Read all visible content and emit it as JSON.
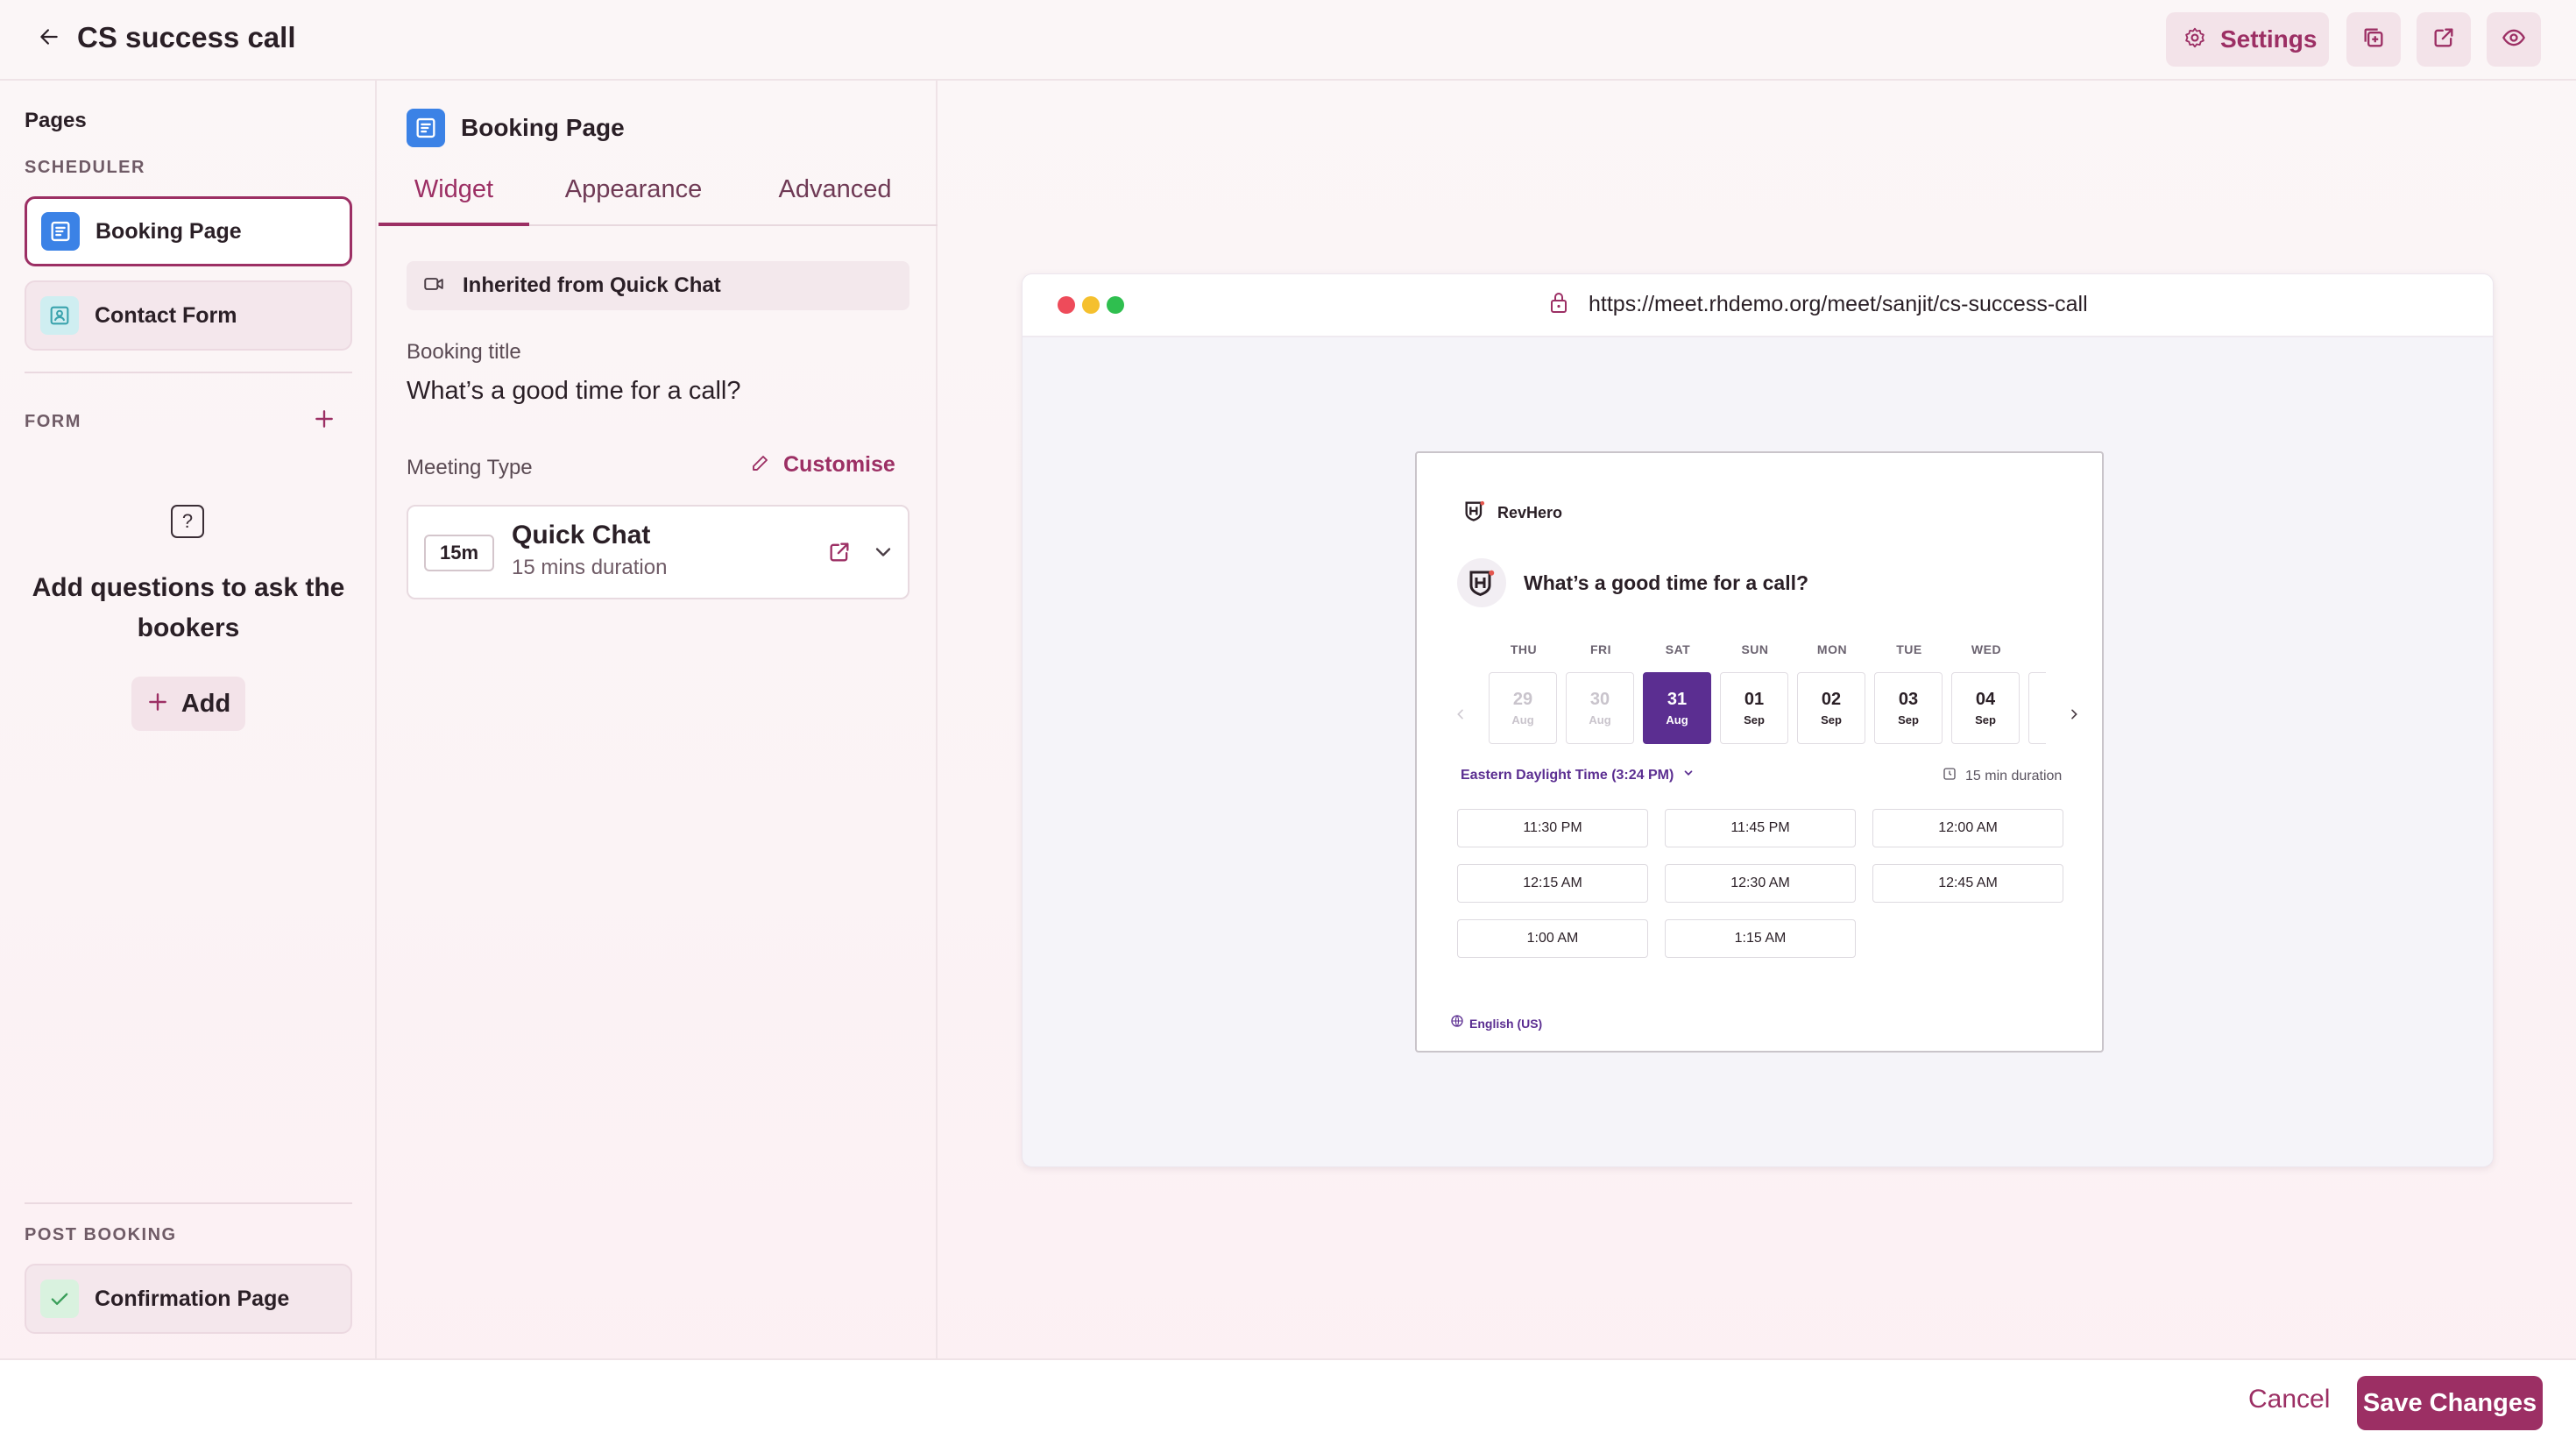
{
  "header": {
    "title": "CS success call",
    "settings_label": "Settings"
  },
  "sidebar": {
    "heading": "Pages",
    "scheduler_label": "SCHEDULER",
    "scheduler_items": [
      {
        "label": "Booking Page",
        "icon": "booking-page-icon"
      },
      {
        "label": "Contact Form",
        "icon": "contact-form-icon"
      }
    ],
    "form_label": "FORM",
    "empty_message": "Add questions to ask the bookers",
    "add_label": "Add",
    "post_booking_label": "POST BOOKING",
    "post_booking_items": [
      {
        "label": "Confirmation Page",
        "icon": "check-icon"
      }
    ]
  },
  "panel": {
    "title": "Booking Page",
    "tabs": [
      {
        "label": "Widget",
        "active": true
      },
      {
        "label": "Appearance",
        "active": false
      },
      {
        "label": "Advanced",
        "active": false
      }
    ],
    "inherited_label": "Inherited from Quick Chat",
    "booking_title_label": "Booking title",
    "booking_title_value": "What’s a good time for a call?",
    "meeting_type_label": "Meeting Type",
    "customise_label": "Customise",
    "meeting": {
      "badge": "15m",
      "name": "Quick Chat",
      "duration": "15 mins duration"
    }
  },
  "preview": {
    "url": "https://meet.rhdemo.org/meet/sanjit/cs-success-call",
    "brand": "RevHero",
    "title": "What’s a good time for a call?",
    "days": [
      {
        "dow": "THU",
        "num": "29",
        "mon": "Aug",
        "state": "disabled"
      },
      {
        "dow": "FRI",
        "num": "30",
        "mon": "Aug",
        "state": "disabled"
      },
      {
        "dow": "SAT",
        "num": "31",
        "mon": "Aug",
        "state": "selected"
      },
      {
        "dow": "SUN",
        "num": "01",
        "mon": "Sep",
        "state": "normal"
      },
      {
        "dow": "MON",
        "num": "02",
        "mon": "Sep",
        "state": "normal"
      },
      {
        "dow": "TUE",
        "num": "03",
        "mon": "Sep",
        "state": "normal"
      },
      {
        "dow": "WED",
        "num": "04",
        "mon": "Sep",
        "state": "normal"
      }
    ],
    "timezone": "Eastern Daylight Time (3:24 PM)",
    "duration": "15 min duration",
    "slots": [
      "11:30 PM",
      "11:45 PM",
      "12:00 AM",
      "12:15 AM",
      "12:30 AM",
      "12:45 AM",
      "1:00 AM",
      "1:15 AM"
    ],
    "language": "English (US)"
  },
  "footer": {
    "cancel_label": "Cancel",
    "save_label": "Save Changes"
  },
  "colors": {
    "accent": "#9c2f64",
    "selected_day": "#5b2e91",
    "booking_icon": "#3b82e6"
  }
}
